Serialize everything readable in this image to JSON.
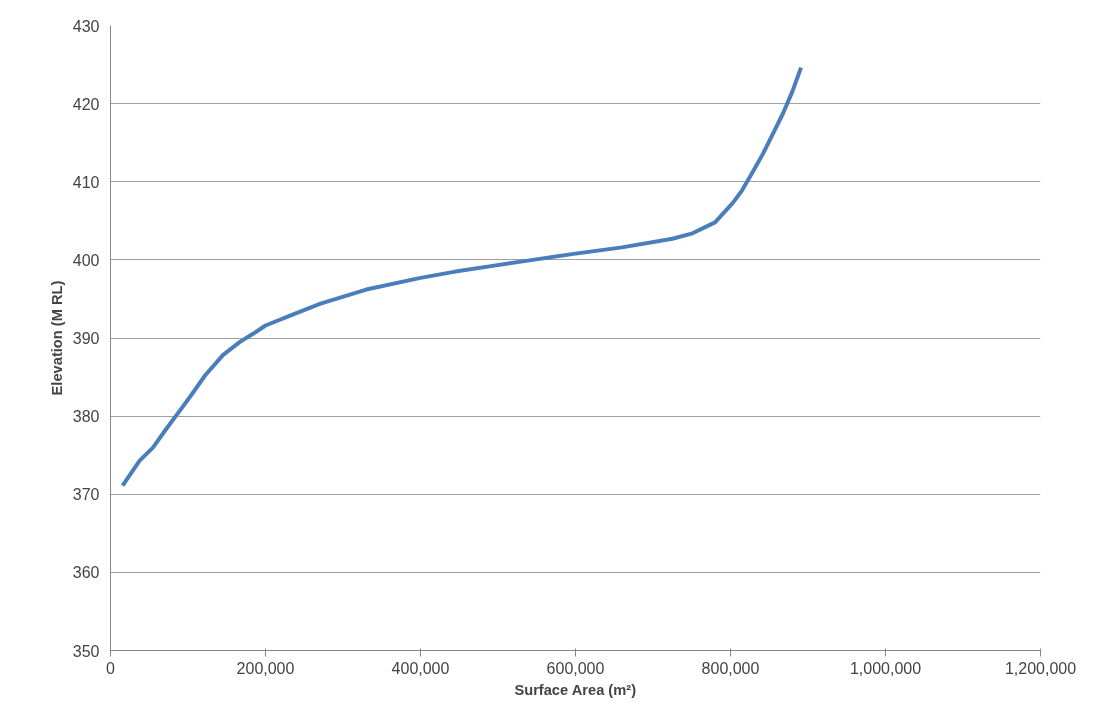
{
  "chart_data": {
    "type": "line",
    "xlabel": "Surface Area (m²)",
    "ylabel": "Elevation (M RL)",
    "x": [
      15600,
      37600,
      55000,
      70000,
      89500,
      105000,
      122000,
      145000,
      167000,
      185000,
      200000,
      235000,
      271000,
      330000,
      400000,
      445000,
      491000,
      545000,
      600000,
      660000,
      725000,
      751000,
      780000,
      803000,
      815000,
      829000,
      842000,
      855000,
      868000,
      880000,
      891000
    ],
    "series": [
      {
        "color": "#4a7ebb",
        "values": [
          371.1,
          374.3,
          376.0,
          378.1,
          380.7,
          382.8,
          385.2,
          387.8,
          389.5,
          390.6,
          391.6,
          393.0,
          394.4,
          396.2,
          397.7,
          398.5,
          399.2,
          400.0,
          400.8,
          401.6,
          402.7,
          403.4,
          404.8,
          407.3,
          408.9,
          411.3,
          413.6,
          416.2,
          418.8,
          421.6,
          424.6
        ]
      }
    ],
    "xlim": [
      0,
      1200000
    ],
    "ylim": [
      350,
      430
    ],
    "xticks": [
      {
        "value": 0,
        "label": "0"
      },
      {
        "value": 200000,
        "label": "200,000"
      },
      {
        "value": 400000,
        "label": "400,000"
      },
      {
        "value": 600000,
        "label": "600,000"
      },
      {
        "value": 800000,
        "label": "800,000"
      },
      {
        "value": 1000000,
        "label": "1,000,000"
      },
      {
        "value": 1200000,
        "label": "1,200,000"
      }
    ],
    "yticks": [
      350,
      360,
      370,
      380,
      390,
      400,
      410,
      420,
      430
    ],
    "grid": "y",
    "marker": "none",
    "line_style": "solid"
  }
}
